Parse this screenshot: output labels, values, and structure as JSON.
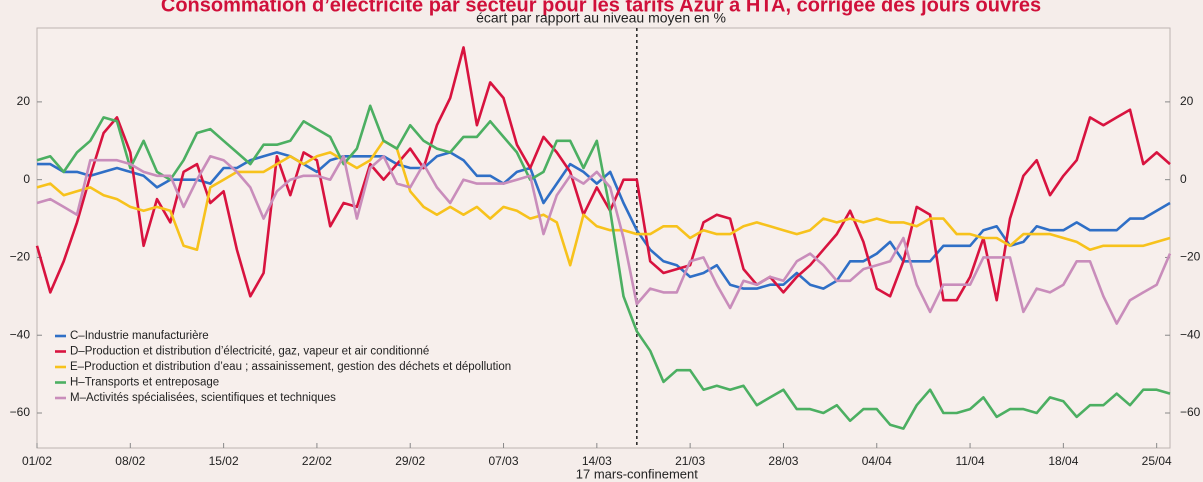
{
  "chart_data": {
    "type": "line",
    "title": "Consommation d’électricité par secteur pour les tarifs Azur à HTA, corrigée des jours ouvrés",
    "subtitle": "écart par rapport au niveau moyen  en %",
    "annotation": {
      "text": "17 mars-confinement",
      "index": 45
    },
    "categories": [
      "01/02",
      null,
      null,
      null,
      null,
      null,
      null,
      "08/02",
      null,
      null,
      null,
      null,
      null,
      null,
      "15/02",
      null,
      null,
      null,
      null,
      null,
      null,
      "22/02",
      null,
      null,
      null,
      null,
      null,
      null,
      "29/02",
      null,
      null,
      null,
      null,
      null,
      null,
      "07/03",
      null,
      null,
      null,
      null,
      null,
      null,
      "14/03",
      null,
      null,
      null,
      null,
      null,
      null,
      "21/03",
      null,
      null,
      null,
      null,
      null,
      null,
      "28/03",
      null,
      null,
      null,
      null,
      null,
      null,
      "04/04",
      null,
      null,
      null,
      null,
      null,
      null,
      "11/04",
      null,
      null,
      null,
      null,
      null,
      null,
      "18/04",
      null,
      null,
      null,
      null,
      null,
      null,
      "25/04",
      null
    ],
    "ylim": [
      -69,
      39
    ],
    "yticks": [
      {
        "value": -60,
        "label": "−60"
      },
      {
        "value": -40,
        "label": "−40"
      },
      {
        "value": -20,
        "label": "−20"
      },
      0,
      20
    ],
    "legend": "lower left",
    "series": [
      {
        "name": "C–Industrie manufacturière",
        "color": "#2f6fc6",
        "values": [
          4,
          4,
          2,
          2,
          1,
          2,
          3,
          2,
          1,
          -2,
          0,
          0,
          0,
          -1,
          3,
          3,
          5,
          6,
          7,
          6,
          4,
          2,
          5,
          6,
          6,
          6,
          6,
          4,
          3,
          3,
          6,
          7,
          5,
          1,
          1,
          -1,
          2,
          3,
          -6,
          -1,
          4,
          2,
          -1,
          2,
          -6,
          -13,
          -18,
          -21,
          -22,
          -25,
          -24,
          -22,
          -27,
          -28,
          -28,
          -27,
          -27,
          -24,
          -27,
          -28,
          -26,
          -21,
          -21,
          -19,
          -16,
          -21,
          -21,
          -21,
          -17,
          -17,
          -17,
          -13,
          -12,
          -17,
          -16,
          -12,
          -13,
          -13,
          -11,
          -13,
          -13,
          -13,
          -10,
          -10,
          -8,
          -6
        ]
      },
      {
        "name": "D–Production et distribution d’électricité, gaz, vapeur et air conditionné",
        "color": "#d8133f",
        "values": [
          -17,
          -29,
          -21,
          -11,
          1,
          12,
          16,
          7,
          -17,
          -5,
          -11,
          2,
          4,
          -6,
          -3,
          -18,
          -30,
          -24,
          6,
          -4,
          7,
          5,
          -12,
          -6,
          -7,
          4,
          0,
          4,
          8,
          3,
          14,
          21,
          34,
          14,
          25,
          21,
          9,
          3,
          11,
          7,
          2,
          -9,
          -2,
          -8,
          0,
          0,
          -21,
          -24,
          -23,
          -22,
          -11,
          -9,
          -10,
          -23,
          -27,
          -25,
          -29,
          -25,
          -22,
          -18,
          -14,
          -8,
          -16,
          -28,
          -30,
          -21,
          -7,
          -9,
          -31,
          -31,
          -25,
          -15,
          -31,
          -10,
          1,
          5,
          -4,
          1,
          5,
          16,
          14,
          16,
          18,
          4,
          7,
          4
        ]
      },
      {
        "name": "E–Production et distribution d’eau ; assainissement, gestion des déchets et dépollution",
        "color": "#f7c21c",
        "values": [
          -2,
          -1,
          -4,
          -3,
          -2,
          -4,
          -5,
          -7,
          -8,
          -7,
          -8,
          -17,
          -18,
          -2,
          0,
          2,
          2,
          2,
          4,
          6,
          4,
          6,
          7,
          5,
          3,
          5,
          10,
          8,
          -3,
          -7,
          -9,
          -7,
          -9,
          -7,
          -10,
          -7,
          -8,
          -10,
          -9,
          -11,
          -22,
          -9,
          -12,
          -13,
          -13,
          -14,
          -14,
          -12,
          -12,
          -15,
          -13,
          -14,
          -14,
          -12,
          -11,
          -12,
          -13,
          -14,
          -13,
          -10,
          -11,
          -10,
          -11,
          -10,
          -11,
          -11,
          -12,
          -10,
          -10,
          -14,
          -14,
          -15,
          -15,
          -17,
          -14,
          -14,
          -14,
          -15,
          -16,
          -18,
          -17,
          -17,
          -17,
          -17,
          -16,
          -15
        ]
      },
      {
        "name": "H–Transports et entreposage",
        "color": "#4caf62",
        "values": [
          5,
          6,
          2,
          7,
          10,
          16,
          15,
          3,
          10,
          2,
          0,
          5,
          12,
          13,
          10,
          7,
          4,
          9,
          9,
          10,
          15,
          13,
          11,
          4,
          8,
          19,
          10,
          8,
          14,
          10,
          8,
          7,
          11,
          11,
          15,
          11,
          7,
          0,
          2,
          10,
          10,
          3,
          10,
          -8,
          -30,
          -39,
          -44,
          -52,
          -49,
          -49,
          -54,
          -53,
          -54,
          -53,
          -58,
          -56,
          -54,
          -59,
          -59,
          -60,
          -58,
          -62,
          -59,
          -59,
          -63,
          -64,
          -58,
          -54,
          -60,
          -60,
          -59,
          -56,
          -61,
          -59,
          -59,
          -60,
          -56,
          -57,
          -61,
          -58,
          -58,
          -55,
          -58,
          -54,
          -54,
          -55
        ]
      },
      {
        "name": "M–Activités spécialisées, scientifiques et techniques",
        "color": "#c98dbb",
        "values": [
          -6,
          -5,
          -7,
          -9,
          5,
          5,
          5,
          4,
          2,
          1,
          1,
          -7,
          0,
          6,
          5,
          2,
          -2,
          -10,
          -3,
          0,
          1,
          1,
          0,
          6,
          -10,
          3,
          6,
          -1,
          -2,
          4,
          -2,
          -6,
          0,
          -1,
          -1,
          -1,
          0,
          1,
          -14,
          -4,
          1,
          -1,
          2,
          -2,
          -15,
          -32,
          -28,
          -29,
          -29,
          -21,
          -20,
          -27,
          -33,
          -26,
          -27,
          -25,
          -26,
          -21,
          -19,
          -22,
          -26,
          -26,
          -23,
          -22,
          -21,
          -15,
          -27,
          -34,
          -27,
          -27,
          -27,
          -20,
          -20,
          -20,
          -34,
          -28,
          -29,
          -27,
          -21,
          -21,
          -30,
          -37,
          -31,
          -29,
          -27,
          -19
        ]
      }
    ]
  }
}
